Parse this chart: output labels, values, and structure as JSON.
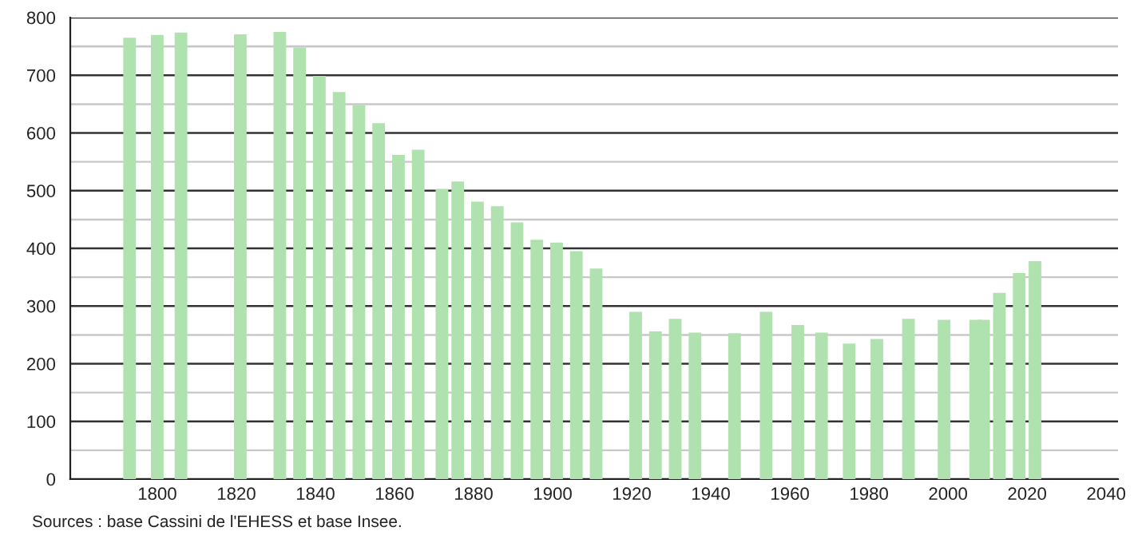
{
  "chart_data": {
    "type": "bar",
    "x": [
      1793,
      1800,
      1806,
      1821,
      1831,
      1836,
      1841,
      1846,
      1851,
      1856,
      1861,
      1866,
      1872,
      1876,
      1881,
      1886,
      1891,
      1896,
      1901,
      1906,
      1911,
      1921,
      1926,
      1931,
      1936,
      1946,
      1954,
      1962,
      1968,
      1975,
      1982,
      1990,
      1999,
      2007,
      2009,
      2013,
      2018,
      2022
    ],
    "values": [
      765,
      770,
      774,
      771,
      775,
      748,
      699,
      671,
      648,
      617,
      562,
      571,
      503,
      516,
      481,
      473,
      445,
      415,
      410,
      395,
      365,
      290,
      256,
      278,
      254,
      253,
      290,
      267,
      254,
      235,
      243,
      278,
      276,
      276,
      276,
      323,
      357,
      378
    ],
    "color": "#b0e2b0",
    "xlim": [
      1778,
      2043
    ],
    "xticks": [
      1800,
      1820,
      1840,
      1860,
      1880,
      1900,
      1920,
      1940,
      1960,
      1980,
      2000,
      2020,
      2040
    ],
    "ylim": [
      0,
      800
    ],
    "yticks": [
      0,
      {
        "value": 50,
        "label": null
      },
      100,
      {
        "value": 150,
        "label": null
      },
      200,
      {
        "value": 250,
        "label": null
      },
      300,
      {
        "value": 350,
        "label": null
      },
      400,
      {
        "value": 450,
        "label": null
      },
      500,
      {
        "value": 550,
        "label": null
      },
      600,
      {
        "value": 650,
        "label": null
      },
      700,
      {
        "value": 750,
        "label": null
      },
      800
    ],
    "grid": "y",
    "annotations": [
      "Sources : base Cassini de l'EHESS et base Insee."
    ]
  }
}
